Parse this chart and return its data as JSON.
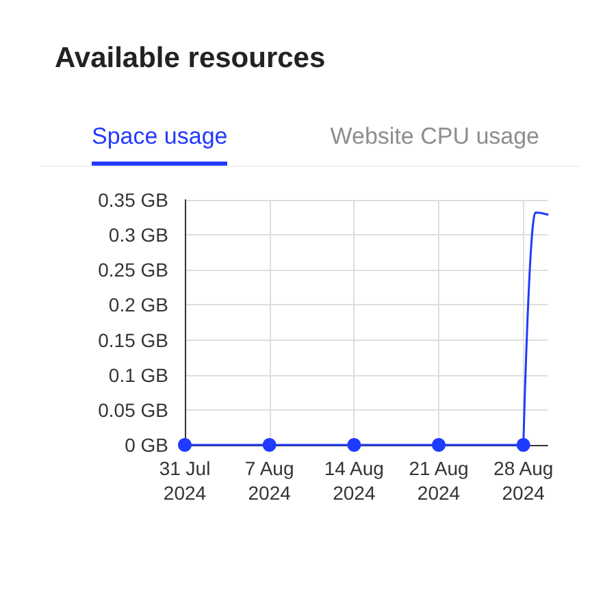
{
  "chart_data": {
    "type": "line",
    "title": "Available resources",
    "subtitle": "Space usage",
    "annotations": [
      "Website CPU usage"
    ],
    "series": [
      {
        "color": "#1f3bff",
        "x": [
          "2024-07-31",
          "2024-08-07",
          "2024-08-14",
          "2024-08-21",
          "2024-08-28"
        ],
        "values": [
          0,
          0,
          0,
          0,
          0
        ],
        "marker": "circle"
      },
      {
        "color": "#1f3bff",
        "x": [
          "2024-08-28",
          "2024-08-29",
          "2024-08-30"
        ],
        "values": [
          0,
          0.332,
          0.329
        ],
        "marker": "none"
      }
    ],
    "xlim": [
      "2024-07-31",
      "2024-08-30"
    ],
    "xticks": [
      {
        "value": "2024-07-31",
        "label": "31 Jul 2024"
      },
      {
        "value": "2024-08-07",
        "label": "7 Aug 2024"
      },
      {
        "value": "2024-08-14",
        "label": "14 Aug 2024"
      },
      {
        "value": "2024-08-21",
        "label": "21 Aug 2024"
      },
      {
        "value": "2024-08-28",
        "label": "28 Aug 2024"
      }
    ],
    "ylim": [
      0,
      0.35
    ],
    "yticks": [
      {
        "value": 0,
        "label": "0 GB"
      },
      {
        "value": 0.05,
        "label": "0.05 GB"
      },
      {
        "value": 0.1,
        "label": "0.1 GB"
      },
      {
        "value": 0.15,
        "label": "0.15 GB"
      },
      {
        "value": 0.2,
        "label": "0.2 GB"
      },
      {
        "value": 0.25,
        "label": "0.25 GB"
      },
      {
        "value": 0.3,
        "label": "0.3 GB"
      },
      {
        "value": 0.35,
        "label": "0.35 GB"
      }
    ],
    "grid": true
  }
}
